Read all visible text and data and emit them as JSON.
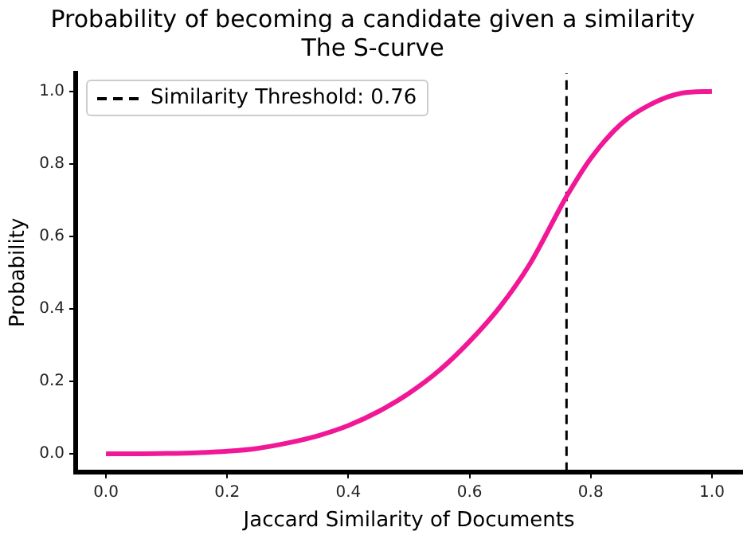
{
  "chart_data": {
    "type": "line",
    "title": "Probability of becoming a candidate given a similarity",
    "subtitle": "The S-curve",
    "xlabel": "Jaccard Similarity of Documents",
    "ylabel": "Probability",
    "series": [
      {
        "color": "#f01896",
        "x": [
          0,
          0.05,
          0.1,
          0.15,
          0.2,
          0.25,
          0.3,
          0.35,
          0.4,
          0.45,
          0.5,
          0.55,
          0.6,
          0.65,
          0.7,
          0.75,
          0.76,
          0.8,
          0.85,
          0.9,
          0.95,
          1.0
        ],
        "values": [
          0,
          0,
          0.001,
          0.003,
          0.007,
          0.015,
          0.03,
          0.05,
          0.078,
          0.117,
          0.167,
          0.23,
          0.31,
          0.405,
          0.525,
          0.68,
          0.71,
          0.815,
          0.91,
          0.965,
          0.995,
          1.0
        ]
      }
    ],
    "xlim": [
      -0.05,
      1.05
    ],
    "ylim": [
      -0.05,
      1.05
    ],
    "xticks": [
      {
        "value": 0,
        "label": "0.0"
      },
      0.2,
      0.4,
      0.6,
      0.8,
      {
        "value": 1,
        "label": "1.0"
      }
    ],
    "yticks": [
      {
        "value": 0,
        "label": "0.0"
      },
      0.2,
      0.4,
      0.6,
      0.8,
      {
        "value": 1,
        "label": "1.0"
      }
    ],
    "ref_lines": [
      {
        "axis": "x",
        "value": 0.76,
        "label": "Similarity Threshold: 0.76",
        "color": "#000000",
        "line_style": "dashed"
      }
    ],
    "legend": "top left",
    "grid": false,
    "marker": "none",
    "line_style": "solid"
  }
}
